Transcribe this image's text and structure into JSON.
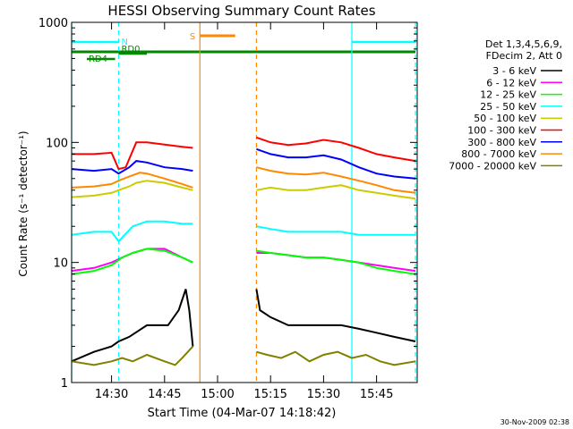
{
  "chart_data": {
    "type": "line",
    "title": "HESSI Observing Summary Count Rates",
    "xlabel": "Start Time (04-Mar-07 14:18:42)",
    "ylabel": "Count Rate (s⁻¹ detector⁻¹)",
    "y_scale": "log",
    "ylim": [
      1,
      1000
    ],
    "xlim": [
      "14:18:42",
      "15:56:30"
    ],
    "x_ticks": [
      "14:30",
      "14:45",
      "15:00",
      "15:15",
      "15:30",
      "15:45"
    ],
    "y_ticks": [
      "1",
      "10",
      "100",
      "1000"
    ],
    "legend_position": "right",
    "legend_header": [
      "Det 1,3,4,5,6,9,",
      "FDecim 2, Att 0"
    ],
    "footer": "30-Nov-2009 02:38",
    "series": [
      {
        "name": "3 - 6 keV",
        "color": "#000000",
        "x": [
          "14:18:42",
          "14:25",
          "14:30",
          "14:32",
          "14:35",
          "14:40",
          "14:43",
          "14:46",
          "14:49",
          "14:51",
          "14:52",
          "14:53",
          "15:11",
          "15:12",
          "15:15",
          "15:20",
          "15:25",
          "15:30",
          "15:35",
          "15:40",
          "15:45",
          "15:50",
          "15:56"
        ],
        "y": [
          1.5,
          1.8,
          2,
          2.2,
          2.4,
          3,
          3,
          3,
          4,
          6,
          4,
          2,
          6,
          4,
          3.5,
          3,
          3,
          3,
          3,
          2.8,
          2.6,
          2.4,
          2.2
        ]
      },
      {
        "name": "6 - 12 keV",
        "color": "#ff00ff",
        "x": [
          "14:18:42",
          "14:25",
          "14:30",
          "14:33",
          "14:36",
          "14:40",
          "14:45",
          "14:50",
          "14:53",
          "15:11",
          "15:15",
          "15:20",
          "15:25",
          "15:30",
          "15:35",
          "15:40",
          "15:45",
          "15:50",
          "15:56"
        ],
        "y": [
          8.5,
          9,
          10,
          11,
          12,
          13,
          13,
          11,
          10,
          12,
          12,
          11.5,
          11,
          11,
          10.5,
          10,
          9.5,
          9,
          8.5
        ]
      },
      {
        "name": "12 - 25 keV",
        "color": "#00ff00",
        "x": [
          "14:18:42",
          "14:25",
          "14:30",
          "14:33",
          "14:36",
          "14:40",
          "14:45",
          "14:50",
          "14:53",
          "15:11",
          "15:15",
          "15:20",
          "15:25",
          "15:30",
          "15:35",
          "15:40",
          "15:45",
          "15:50",
          "15:56"
        ],
        "y": [
          8,
          8.5,
          9.5,
          11,
          12,
          13,
          12.5,
          11,
          10,
          12.5,
          12,
          11.5,
          11,
          11,
          10.5,
          10,
          9,
          8.5,
          8
        ]
      },
      {
        "name": "25 - 50 keV",
        "color": "#00ffff",
        "x": [
          "14:18:42",
          "14:25",
          "14:30",
          "14:32",
          "14:36",
          "14:40",
          "14:45",
          "14:50",
          "14:53",
          "15:11",
          "15:15",
          "15:20",
          "15:25",
          "15:30",
          "15:35",
          "15:40",
          "15:45",
          "15:50",
          "15:56"
        ],
        "y": [
          17,
          18,
          18,
          15,
          20,
          22,
          22,
          21,
          21,
          20,
          19,
          18,
          18,
          18,
          18,
          17,
          17,
          17,
          17
        ]
      },
      {
        "name": "50 - 100 keV",
        "color": "#cccc00",
        "x": [
          "14:18:42",
          "14:25",
          "14:30",
          "14:32",
          "14:35",
          "14:37",
          "14:40",
          "14:45",
          "14:50",
          "14:53",
          "15:11",
          "15:15",
          "15:20",
          "15:25",
          "15:30",
          "15:35",
          "15:40",
          "15:45",
          "15:50",
          "15:56"
        ],
        "y": [
          35,
          36,
          38,
          40,
          43,
          46,
          48,
          46,
          42,
          40,
          40,
          42,
          40,
          40,
          42,
          44,
          40,
          38,
          36,
          34
        ]
      },
      {
        "name": "100 - 300 keV",
        "color": "#ff0000",
        "x": [
          "14:18:42",
          "14:25",
          "14:30",
          "14:32",
          "14:34",
          "14:37",
          "14:40",
          "14:45",
          "14:50",
          "14:53",
          "15:11",
          "15:15",
          "15:20",
          "15:25",
          "15:30",
          "15:35",
          "15:40",
          "15:45",
          "15:50",
          "15:56"
        ],
        "y": [
          80,
          80,
          82,
          60,
          62,
          100,
          100,
          96,
          92,
          90,
          110,
          100,
          95,
          98,
          105,
          100,
          90,
          80,
          75,
          70
        ]
      },
      {
        "name": "300 - 800 keV",
        "color": "#0000ff",
        "x": [
          "14:18:42",
          "14:25",
          "14:30",
          "14:32",
          "14:35",
          "14:37",
          "14:40",
          "14:45",
          "14:50",
          "14:53",
          "15:11",
          "15:15",
          "15:20",
          "15:25",
          "15:30",
          "15:35",
          "15:40",
          "15:45",
          "15:50",
          "15:56"
        ],
        "y": [
          60,
          58,
          60,
          55,
          62,
          70,
          68,
          62,
          60,
          58,
          88,
          80,
          75,
          75,
          78,
          72,
          62,
          55,
          52,
          50
        ]
      },
      {
        "name": "800 - 7000 keV",
        "color": "#ff8800",
        "x": [
          "14:18:42",
          "14:25",
          "14:30",
          "14:32",
          "14:35",
          "14:38",
          "14:40",
          "14:45",
          "14:50",
          "14:53",
          "15:11",
          "15:15",
          "15:20",
          "15:25",
          "15:30",
          "15:35",
          "15:40",
          "15:45",
          "15:50",
          "15:56"
        ],
        "y": [
          42,
          43,
          45,
          48,
          52,
          56,
          55,
          50,
          45,
          42,
          62,
          58,
          55,
          54,
          56,
          52,
          48,
          44,
          40,
          38
        ]
      },
      {
        "name": "7000 - 20000 keV",
        "color": "#808000",
        "x": [
          "14:18:42",
          "14:25",
          "14:30",
          "14:33",
          "14:36",
          "14:40",
          "14:45",
          "14:48",
          "14:50",
          "14:53",
          "15:11",
          "15:14",
          "15:18",
          "15:22",
          "15:26",
          "15:30",
          "15:34",
          "15:38",
          "15:42",
          "15:46",
          "15:50",
          "15:56"
        ],
        "y": [
          1.5,
          1.4,
          1.5,
          1.6,
          1.5,
          1.7,
          1.5,
          1.4,
          1.6,
          2,
          1.8,
          1.7,
          1.6,
          1.8,
          1.5,
          1.7,
          1.8,
          1.6,
          1.7,
          1.5,
          1.4,
          1.5
        ]
      }
    ],
    "flag_bars": [
      {
        "label": "N",
        "color": "#00ffff",
        "segments": [
          [
            "14:18:42",
            "14:32"
          ],
          [
            "15:38",
            "15:56"
          ]
        ]
      },
      {
        "label": "",
        "color": "#008800",
        "segments": [
          [
            "14:18:42",
            "15:56"
          ]
        ]
      },
      {
        "label": "RD0",
        "color": "#008800",
        "segments": [
          [
            "14:32",
            "14:40"
          ]
        ]
      },
      {
        "label": "RD4",
        "color": "#008800",
        "segments": [
          [
            "14:23",
            "14:31"
          ]
        ]
      },
      {
        "label": "S",
        "color": "#ff8800",
        "segments": [
          [
            "14:55",
            "15:05"
          ]
        ]
      }
    ],
    "markers": [
      {
        "time": "14:18:42",
        "color": "#00ffff",
        "style": "solid"
      },
      {
        "time": "14:32",
        "color": "#00ffff",
        "style": "dashed"
      },
      {
        "time": "14:55",
        "color": "#ff8800",
        "style": "solid"
      },
      {
        "time": "15:11",
        "color": "#ff8800",
        "style": "dashed"
      },
      {
        "time": "15:38",
        "color": "#00ffff",
        "style": "solid"
      },
      {
        "time": "15:56",
        "color": "#00ffff",
        "style": "dashed"
      }
    ]
  }
}
